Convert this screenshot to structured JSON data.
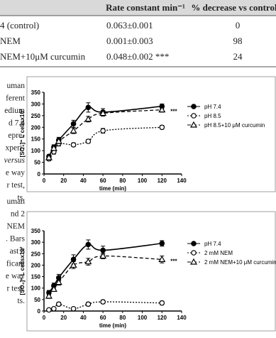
{
  "table": {
    "header": [
      "Rate constant min⁻¹",
      "% decrease vs control"
    ],
    "rows": [
      [
        "4 (control)",
        "0.063±0.001",
        "0"
      ],
      [
        "NEM",
        "0.001±0.003",
        "98"
      ],
      [
        "NEM+10μM curcumin",
        "0.048±0.002 ***",
        "24"
      ]
    ]
  },
  "captions": [
    [
      "uman",
      "ferent",
      "edium",
      "d 7.4",
      "epre-",
      "xperi-",
      "versus",
      "e way",
      "r test,",
      "ts."
    ],
    [
      "uman",
      "nd 2",
      "NEM",
      ". Bars",
      "ast 8",
      "ficant",
      "e way",
      "r test,",
      "ts."
    ]
  ],
  "chart_data": [
    {
      "type": "line",
      "x_label": "time (min)",
      "y_label": "[SO₄]⁼ L cellsx10²",
      "xlim": [
        0,
        140
      ],
      "ylim": [
        0,
        350
      ],
      "xticks": [
        0,
        20,
        40,
        60,
        80,
        100,
        120,
        140
      ],
      "yticks": [
        0,
        50,
        100,
        150,
        200,
        250,
        300,
        350
      ],
      "annotation": "***",
      "x": [
        5,
        10,
        15,
        30,
        45,
        60,
        120
      ],
      "series": [
        {
          "name": "pH 7.4",
          "color": "#000000",
          "marker": "filled-circle",
          "line_style": "solid",
          "values": [
            75,
            115,
            145,
            215,
            285,
            265,
            290
          ],
          "errors": [
            8,
            10,
            12,
            15,
            20,
            15,
            10
          ]
        },
        {
          "name": "pH 8.5",
          "color": "#000000",
          "marker": "open-circle",
          "line_style": "dotted",
          "values": [
            65,
            95,
            130,
            125,
            140,
            185,
            200
          ],
          "errors": [
            8,
            10,
            10,
            8,
            8,
            10,
            8
          ]
        },
        {
          "name": "pH 8.5+10 μM curcumin",
          "color": "#000000",
          "marker": "open-triangle",
          "line_style": "dashed",
          "values": [
            70,
            110,
            140,
            185,
            235,
            260,
            275
          ],
          "errors": [
            8,
            10,
            10,
            12,
            12,
            12,
            10
          ]
        }
      ]
    },
    {
      "type": "line",
      "x_label": "time (min)",
      "y_label": "[SO₄]⁼ L cellsx10²",
      "xlim": [
        0,
        140
      ],
      "ylim": [
        0,
        350
      ],
      "xticks": [
        0,
        20,
        40,
        60,
        80,
        100,
        120,
        140
      ],
      "yticks": [
        0,
        50,
        100,
        150,
        200,
        250,
        300,
        350
      ],
      "annotation": "***",
      "x": [
        5,
        10,
        15,
        30,
        45,
        60,
        120
      ],
      "series": [
        {
          "name": "pH 7.4",
          "color": "#000000",
          "marker": "filled-circle",
          "line_style": "solid",
          "values": [
            80,
            110,
            145,
            225,
            290,
            265,
            295
          ],
          "errors": [
            10,
            12,
            15,
            20,
            20,
            18,
            12
          ]
        },
        {
          "name": "2 mM NEM",
          "color": "#000000",
          "marker": "open-circle",
          "line_style": "dotted",
          "values": [
            5,
            10,
            30,
            10,
            30,
            40,
            35
          ],
          "errors": [
            5,
            5,
            8,
            5,
            8,
            8,
            8
          ]
        },
        {
          "name": "2 mM NEM+10 μM curcumin",
          "color": "#000000",
          "marker": "open-triangle",
          "line_style": "dashed",
          "values": [
            65,
            95,
            125,
            200,
            215,
            240,
            225
          ],
          "errors": [
            10,
            10,
            12,
            15,
            15,
            12,
            15
          ]
        }
      ]
    }
  ]
}
